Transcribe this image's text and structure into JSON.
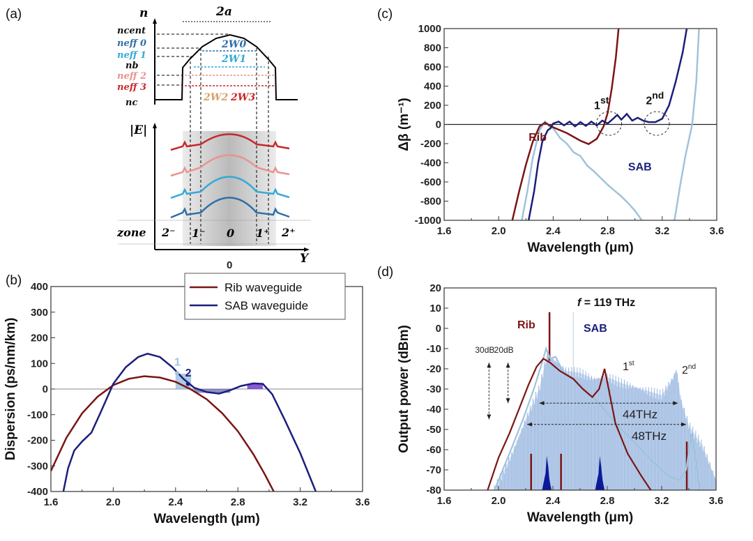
{
  "panel_labels": {
    "a": "(a)",
    "b": "(b)",
    "c": "(c)",
    "d": "(d)"
  },
  "schematic": {
    "n_axis": "n",
    "width_label": "2a",
    "n_cent": "ncent",
    "n_cent_sub": "cent",
    "n_eff0": "neff 0",
    "n_eff1": "neff 1",
    "n_b": "nb",
    "n_eff2": "neff 2",
    "n_eff3": "neff 3",
    "n_c": "nc",
    "w0": "2W0",
    "w1": "2W1",
    "w2": "2W2",
    "w3": "2W3",
    "e_axis": "|E|",
    "zone_label": "zone",
    "zones": [
      "2⁻",
      "1⁻",
      "0",
      "1⁺",
      "2⁺"
    ],
    "y_axis": "Y",
    "origin": "0",
    "colors": {
      "mode0": "#2f6fa8",
      "mode1": "#35a9d6",
      "mode2": "#e8938f",
      "mode3": "#c8282a"
    }
  },
  "chart_data": [
    {
      "id": "b",
      "type": "line",
      "xlabel": "Wavelength (μm)",
      "ylabel": "Dispersion (ps/nm/km)",
      "xlim": [
        1.6,
        3.6
      ],
      "ylim": [
        -400,
        400
      ],
      "xticks": [
        "1.6",
        "2.0",
        "2.4",
        "2.8",
        "3.2",
        "3.6"
      ],
      "yticks": [
        "400",
        "300",
        "200",
        "100",
        "0",
        "-100",
        "-200",
        "-300",
        "-400"
      ],
      "legend": {
        "placement": "top-right",
        "entries": [
          "Rib waveguide",
          "SAB waveguide"
        ]
      },
      "series": [
        {
          "name": "Rib waveguide",
          "color": "#7b1414",
          "points": [
            [
              1.6,
              -320
            ],
            [
              1.7,
              -190
            ],
            [
              1.8,
              -95
            ],
            [
              1.9,
              -30
            ],
            [
              2.0,
              15
            ],
            [
              2.1,
              40
            ],
            [
              2.2,
              50
            ],
            [
              2.3,
              45
            ],
            [
              2.4,
              28
            ],
            [
              2.5,
              -2
            ],
            [
              2.6,
              -40
            ],
            [
              2.7,
              -95
            ],
            [
              2.8,
              -165
            ],
            [
              2.9,
              -255
            ],
            [
              2.97,
              -330
            ],
            [
              3.03,
              -400
            ]
          ]
        },
        {
          "name": "SAB waveguide",
          "color": "#1a1f7a",
          "points": [
            [
              1.68,
              -400
            ],
            [
              1.71,
              -310
            ],
            [
              1.75,
              -240
            ],
            [
              1.8,
              -205
            ],
            [
              1.86,
              -170
            ],
            [
              1.92,
              -90
            ],
            [
              2.0,
              20
            ],
            [
              2.08,
              85
            ],
            [
              2.16,
              125
            ],
            [
              2.22,
              138
            ],
            [
              2.3,
              125
            ],
            [
              2.38,
              85
            ],
            [
              2.45,
              40
            ],
            [
              2.52,
              5
            ],
            [
              2.6,
              -12
            ],
            [
              2.68,
              -18
            ],
            [
              2.75,
              -5
            ],
            [
              2.82,
              12
            ],
            [
              2.9,
              22
            ],
            [
              2.96,
              20
            ],
            [
              3.02,
              -20
            ],
            [
              3.1,
              -120
            ],
            [
              3.2,
              -250
            ],
            [
              3.3,
              -400
            ]
          ]
        }
      ],
      "annotations": [
        {
          "text": "1",
          "x": 2.41,
          "y": 80,
          "color": "#9fc3dc"
        },
        {
          "text": "2",
          "x": 2.48,
          "y": 38,
          "color": "#1a1f7a"
        }
      ]
    },
    {
      "id": "c",
      "type": "line",
      "xlabel": "Wavelength (μm)",
      "ylabel": "Δβ  (m⁻¹)",
      "xlim": [
        1.6,
        3.6
      ],
      "ylim": [
        -1000,
        1000
      ],
      "xticks": [
        "1.6",
        "2.0",
        "2.4",
        "2.8",
        "3.2",
        "3.6"
      ],
      "yticks": [
        "1000",
        "800",
        "600",
        "400",
        "200",
        "0",
        "-200",
        "-400",
        "-600",
        "-800",
        "-1000"
      ],
      "series": [
        {
          "name": "Rib",
          "color": "#7b1414",
          "points": [
            [
              2.1,
              -1000
            ],
            [
              2.15,
              -700
            ],
            [
              2.2,
              -420
            ],
            [
              2.25,
              -180
            ],
            [
              2.3,
              -20
            ],
            [
              2.34,
              20
            ],
            [
              2.4,
              -30
            ],
            [
              2.5,
              -90
            ],
            [
              2.6,
              -170
            ],
            [
              2.66,
              -205
            ],
            [
              2.72,
              -150
            ],
            [
              2.77,
              -20
            ],
            [
              2.8,
              120
            ],
            [
              2.83,
              380
            ],
            [
              2.86,
              700
            ],
            [
              2.88,
              1000
            ]
          ]
        },
        {
          "name": "SAB",
          "color": "#1a1f7a",
          "points": [
            [
              2.22,
              -1000
            ],
            [
              2.26,
              -700
            ],
            [
              2.29,
              -400
            ],
            [
              2.32,
              -180
            ],
            [
              2.34,
              -120
            ],
            [
              2.36,
              -60
            ],
            [
              2.38,
              -40
            ],
            [
              2.4,
              10
            ],
            [
              2.44,
              30
            ],
            [
              2.48,
              -10
            ],
            [
              2.52,
              30
            ],
            [
              2.56,
              -20
            ],
            [
              2.6,
              25
            ],
            [
              2.64,
              -15
            ],
            [
              2.68,
              30
            ],
            [
              2.72,
              -10
            ],
            [
              2.76,
              40
            ],
            [
              2.8,
              10
            ],
            [
              2.84,
              60
            ],
            [
              2.87,
              100
            ],
            [
              2.9,
              50
            ],
            [
              2.94,
              110
            ],
            [
              2.98,
              40
            ],
            [
              3.02,
              70
            ],
            [
              3.06,
              40
            ],
            [
              3.1,
              25
            ],
            [
              3.15,
              25
            ],
            [
              3.2,
              60
            ],
            [
              3.25,
              200
            ],
            [
              3.3,
              450
            ],
            [
              3.35,
              750
            ],
            [
              3.38,
              1000
            ]
          ]
        },
        {
          "name": "",
          "color": "#9fc3dc",
          "points": [
            [
              2.17,
              -1000
            ],
            [
              2.21,
              -700
            ],
            [
              2.25,
              -350
            ],
            [
              2.3,
              -60
            ],
            [
              2.34,
              30
            ],
            [
              2.37,
              -20
            ],
            [
              2.4,
              -40
            ],
            [
              2.45,
              -140
            ],
            [
              2.5,
              -200
            ],
            [
              2.55,
              -290
            ],
            [
              2.6,
              -330
            ],
            [
              2.65,
              -430
            ],
            [
              2.7,
              -490
            ],
            [
              2.75,
              -560
            ],
            [
              2.8,
              -630
            ],
            [
              2.85,
              -690
            ],
            [
              2.9,
              -750
            ],
            [
              2.95,
              -820
            ],
            [
              3.0,
              -900
            ],
            [
              3.05,
              -1000
            ]
          ]
        },
        {
          "name": "",
          "color": "#9fc3dc",
          "points": [
            [
              3.29,
              -1000
            ],
            [
              3.33,
              -650
            ],
            [
              3.37,
              -330
            ],
            [
              3.42,
              0
            ],
            [
              3.45,
              450
            ],
            [
              3.47,
              1000
            ]
          ]
        }
      ],
      "annotations": [
        {
          "text": "Rib",
          "x": 2.22,
          "y": -170,
          "color": "#7b1414"
        },
        {
          "text": "SAB",
          "x": 2.95,
          "y": -480,
          "color": "#1a1f7a"
        },
        {
          "text": "1st",
          "x": 2.7,
          "y": 160,
          "color": "#111"
        },
        {
          "text": "2nd",
          "x": 3.08,
          "y": 210,
          "color": "#111"
        }
      ],
      "circles": [
        {
          "x": 2.81,
          "y": 10
        },
        {
          "x": 3.16,
          "y": 10
        }
      ]
    },
    {
      "id": "d",
      "type": "line",
      "xlabel": "Wavelength (μm)",
      "ylabel": "Output power (dBm)",
      "xlim": [
        1.6,
        3.6
      ],
      "ylim": [
        -80,
        20
      ],
      "xticks": [
        "1.6",
        "2.0",
        "2.4",
        "2.8",
        "3.2",
        "3.6"
      ],
      "yticks": [
        "20",
        "10",
        "0",
        "-10",
        "-20",
        "-30",
        "-40",
        "-50",
        "-60",
        "-70",
        "-80"
      ],
      "comb_envelope": {
        "color": "#7fa3d6",
        "points": [
          [
            1.97,
            -80
          ],
          [
            2.1,
            -62
          ],
          [
            2.2,
            -45
          ],
          [
            2.3,
            -30
          ],
          [
            2.36,
            -12
          ],
          [
            2.4,
            -15
          ],
          [
            2.5,
            -21
          ],
          [
            2.6,
            -22
          ],
          [
            2.7,
            -25
          ],
          [
            2.8,
            -24
          ],
          [
            2.9,
            -27
          ],
          [
            3.0,
            -29
          ],
          [
            3.1,
            -31
          ],
          [
            3.2,
            -33
          ],
          [
            3.28,
            -25
          ],
          [
            3.31,
            -20
          ],
          [
            3.34,
            -35
          ],
          [
            3.4,
            -48
          ],
          [
            3.5,
            -58
          ],
          [
            3.6,
            -75
          ]
        ]
      },
      "series": [
        {
          "name": "Rib",
          "color": "#7b1414",
          "points": [
            [
              1.92,
              -80
            ],
            [
              2.0,
              -64
            ],
            [
              2.08,
              -52
            ],
            [
              2.15,
              -40
            ],
            [
              2.22,
              -28
            ],
            [
              2.28,
              -19
            ],
            [
              2.33,
              -15
            ],
            [
              2.38,
              -17
            ],
            [
              2.45,
              -21
            ],
            [
              2.55,
              -25
            ],
            [
              2.62,
              -30
            ],
            [
              2.69,
              -34
            ],
            [
              2.74,
              -30
            ],
            [
              2.78,
              -20
            ],
            [
              2.81,
              -30
            ],
            [
              2.86,
              -47
            ],
            [
              2.95,
              -62
            ],
            [
              3.05,
              -73
            ],
            [
              3.12,
              -80
            ]
          ]
        },
        {
          "name": "SAB",
          "color": "#9fc3dc",
          "points": [
            [
              1.97,
              -80
            ],
            [
              2.08,
              -62
            ],
            [
              2.18,
              -45
            ],
            [
              2.26,
              -30
            ],
            [
              2.32,
              -17
            ],
            [
              2.35,
              -10
            ],
            [
              2.38,
              -15
            ],
            [
              2.42,
              -14
            ],
            [
              2.47,
              -21
            ],
            [
              2.55,
              -25
            ],
            [
              2.65,
              -31
            ],
            [
              2.75,
              -38
            ],
            [
              2.85,
              -46
            ],
            [
              2.95,
              -53
            ],
            [
              3.05,
              -60
            ],
            [
              3.15,
              -67
            ],
            [
              3.25,
              -73
            ],
            [
              3.33,
              -75
            ],
            [
              3.38,
              -70
            ],
            [
              3.42,
              -52
            ],
            [
              3.45,
              -65
            ],
            [
              3.48,
              -80
            ]
          ]
        }
      ],
      "spikes": [
        {
          "x": 2.375,
          "from": -16,
          "to": 8,
          "color": "#7b1414"
        },
        {
          "x": 2.24,
          "from": -80,
          "to": -62,
          "color": "#7b1414"
        },
        {
          "x": 2.46,
          "from": -80,
          "to": -62,
          "color": "#7b1414"
        },
        {
          "x": 3.385,
          "from": -80,
          "to": -56,
          "color": "#7b1414"
        },
        {
          "x": 2.55,
          "from": -80,
          "to": 8,
          "color": "#b8cde0"
        }
      ],
      "blue_peaks": [
        {
          "center": 2.36,
          "peak": -63,
          "color": "#0c1a9a"
        },
        {
          "center": 2.75,
          "peak": -63,
          "color": "#0c1a9a"
        }
      ],
      "annotations": {
        "f_symbol": "f",
        "f_value": " = 119 THz",
        "rib": "Rib",
        "sab": "SAB",
        "db30": "30dB",
        "db20": "20dB",
        "first": "1",
        "first_sup": "st",
        "second": "2",
        "second_sup": "nd",
        "span44": "44THz",
        "span48": "48THz"
      },
      "bandwidth_arrows": [
        {
          "label": "44THz",
          "from": 2.3,
          "to": 3.32,
          "y": -37
        },
        {
          "label": "48THz",
          "from": 2.21,
          "to": 3.38,
          "y": -47.5
        }
      ],
      "db_arrows": [
        {
          "label": "30dB",
          "x": 1.93,
          "from": -17,
          "to": -45
        },
        {
          "label": "20dB",
          "x": 2.07,
          "from": -17,
          "to": -37
        }
      ]
    }
  ]
}
